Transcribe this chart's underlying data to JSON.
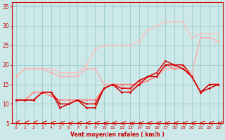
{
  "xlabel": "Vent moyen/en rafales ( km/h )",
  "bg_color": "#cce8e8",
  "grid_color": "#99cccc",
  "xlim": [
    -0.5,
    23.5
  ],
  "ylim": [
    5,
    36
  ],
  "yticks": [
    5,
    10,
    15,
    20,
    25,
    30,
    35
  ],
  "xticks": [
    0,
    1,
    2,
    3,
    4,
    5,
    6,
    7,
    8,
    9,
    10,
    11,
    12,
    13,
    14,
    15,
    16,
    17,
    18,
    19,
    20,
    21,
    22,
    23
  ],
  "series": [
    {
      "x": [
        0,
        1,
        2,
        3,
        4,
        5,
        6,
        7,
        8,
        9,
        10,
        11,
        12,
        13,
        14,
        15,
        16,
        17,
        18,
        19,
        20,
        21,
        22,
        23
      ],
      "y": [
        17,
        19,
        19,
        19,
        19,
        18,
        18,
        18,
        20,
        24,
        25,
        25,
        25,
        25,
        26,
        29,
        30,
        31,
        31,
        31,
        27,
        28,
        28,
        28
      ],
      "color": "#ffbbbb",
      "lw": 0.9,
      "marker": "D",
      "ms": 1.5
    },
    {
      "x": [
        0,
        1,
        2,
        3,
        4,
        5,
        6,
        7,
        8,
        9,
        10,
        11,
        12,
        13,
        14,
        15,
        16,
        17,
        18,
        19,
        20,
        21,
        22,
        23
      ],
      "y": [
        17,
        19,
        19,
        19,
        18,
        17,
        17,
        17,
        19,
        19,
        15,
        15,
        15,
        13,
        16,
        17,
        17,
        19,
        19,
        20,
        18,
        27,
        27,
        26
      ],
      "color": "#ffaaaa",
      "lw": 0.9,
      "marker": "D",
      "ms": 1.5
    },
    {
      "x": [
        0,
        1,
        2,
        3,
        4,
        5,
        6,
        7,
        8,
        9,
        10,
        11,
        12,
        13,
        14,
        15,
        16,
        17,
        18,
        19,
        20,
        21,
        22,
        23
      ],
      "y": [
        11,
        11,
        13,
        13,
        12,
        11,
        11,
        11,
        11,
        11,
        14,
        15,
        15,
        15,
        15,
        16,
        17,
        20,
        19,
        19,
        17,
        13,
        15,
        15
      ],
      "color": "#ff7777",
      "lw": 1.0,
      "marker": "D",
      "ms": 1.5
    },
    {
      "x": [
        0,
        1,
        2,
        3,
        4,
        5,
        6,
        7,
        8,
        9,
        10,
        11,
        12,
        13,
        14,
        15,
        16,
        17,
        18,
        19,
        20,
        21,
        22,
        23
      ],
      "y": [
        11,
        11,
        11,
        13,
        13,
        9,
        10,
        11,
        9,
        9,
        14,
        15,
        13,
        13,
        15,
        17,
        17,
        20,
        20,
        19,
        17,
        13,
        14,
        15
      ],
      "color": "#cc0000",
      "lw": 1.1,
      "marker": "D",
      "ms": 1.5
    },
    {
      "x": [
        0,
        1,
        2,
        3,
        4,
        5,
        6,
        7,
        8,
        9,
        10,
        11,
        12,
        13,
        14,
        15,
        16,
        17,
        18,
        19,
        20,
        21,
        22,
        23
      ],
      "y": [
        11,
        11,
        11,
        13,
        13,
        10,
        10,
        11,
        10,
        10,
        14,
        15,
        14,
        14,
        16,
        17,
        18,
        21,
        20,
        20,
        17,
        13,
        15,
        15
      ],
      "color": "#dd0000",
      "lw": 1.1,
      "marker": "D",
      "ms": 1.5
    }
  ]
}
